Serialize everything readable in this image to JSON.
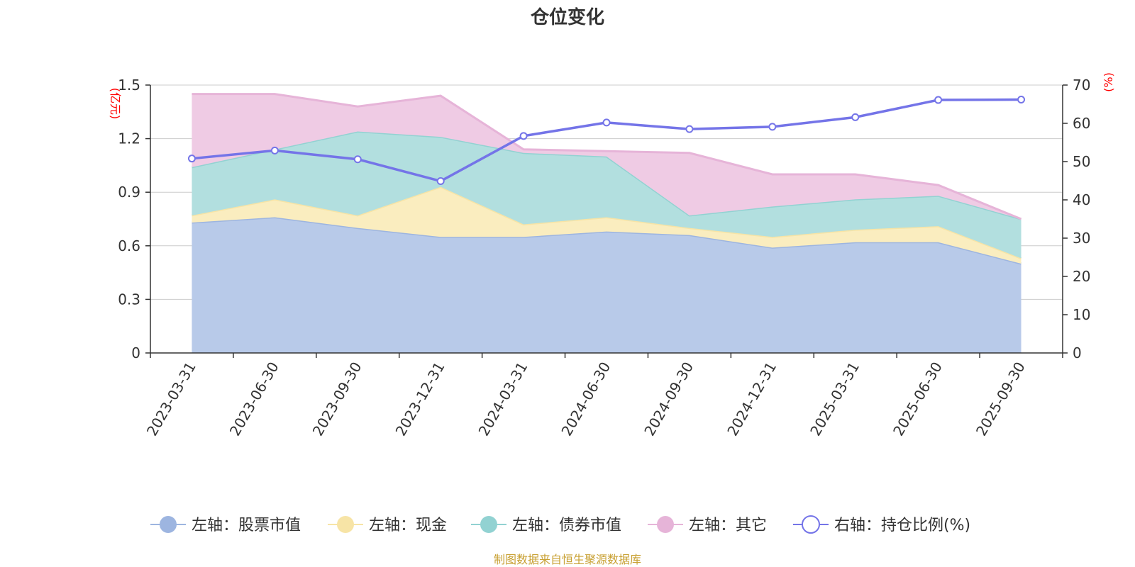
{
  "chart_data": {
    "type": "area",
    "title": "仓位变化",
    "categories": [
      "2023-03-31",
      "2023-06-30",
      "2023-09-30",
      "2023-12-31",
      "2024-03-31",
      "2024-06-30",
      "2024-09-30",
      "2024-12-31",
      "2025-03-31",
      "2025-06-30",
      "2025-09-30"
    ],
    "stacked": true,
    "left_axis": {
      "unit_label": "(亿元)",
      "ylim": [
        0,
        1.5
      ],
      "ticks": [
        0,
        0.3,
        0.6,
        0.9,
        1.2,
        1.5
      ],
      "tick_labels": [
        "0",
        "0.3",
        "0.6",
        "0.9",
        "1.2",
        "1.5"
      ]
    },
    "right_axis": {
      "unit_label": "(%)",
      "ylim": [
        0,
        70
      ],
      "ticks": [
        0,
        10,
        20,
        30,
        40,
        50,
        60,
        70
      ]
    },
    "grid": true,
    "legend_position": "bottom",
    "series": [
      {
        "name": "左轴：股票市值",
        "axis": "left",
        "kind": "area",
        "color": "#9db5e0",
        "fill": "#b8cae9",
        "values": [
          0.73,
          0.76,
          0.7,
          0.65,
          0.65,
          0.68,
          0.66,
          0.59,
          0.62,
          0.62,
          0.5
        ]
      },
      {
        "name": "左轴：现金",
        "axis": "left",
        "kind": "area",
        "color": "#f7e4a6",
        "fill": "#faedbf",
        "values": [
          0.04,
          0.1,
          0.07,
          0.28,
          0.07,
          0.08,
          0.04,
          0.06,
          0.07,
          0.09,
          0.03
        ]
      },
      {
        "name": "左轴：债券市值",
        "axis": "left",
        "kind": "area",
        "color": "#92d2d2",
        "fill": "#b2dfdf",
        "values": [
          0.27,
          0.28,
          0.47,
          0.28,
          0.4,
          0.34,
          0.07,
          0.17,
          0.17,
          0.17,
          0.22
        ]
      },
      {
        "name": "左轴：其它",
        "axis": "left",
        "kind": "area",
        "color": "#e6b4d8",
        "fill": "#efcbe4",
        "values": [
          0.41,
          0.31,
          0.14,
          0.23,
          0.02,
          0.03,
          0.35,
          0.18,
          0.14,
          0.06,
          0.0
        ]
      },
      {
        "name": "右轴：持仓比例(%)",
        "axis": "right",
        "kind": "line",
        "color": "#7474e8",
        "values": [
          50.8,
          52.9,
          50.6,
          44.9,
          56.7,
          60.2,
          58.5,
          59.1,
          61.6,
          66.1,
          66.2
        ]
      }
    ]
  },
  "source_note": "制图数据来自恒生聚源数据库",
  "colors": {
    "axis": "#333333",
    "grid": "#cccccc",
    "unit_label": "#ff0000"
  }
}
